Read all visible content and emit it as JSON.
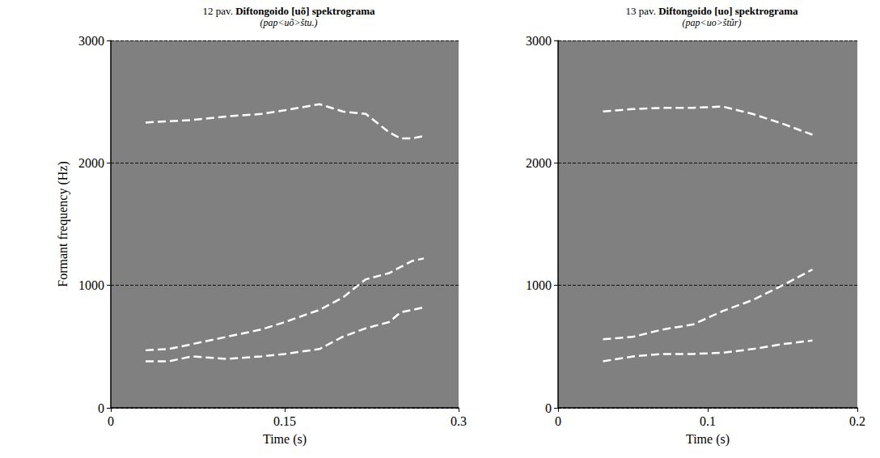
{
  "chart_data": [
    {
      "type": "line",
      "title": "12 pav. Diftongoido [uõ] spektrograma",
      "subtitle": "(pap<uõ>štu.)",
      "y_label": "Formant frequency (Hz)",
      "x_label": "Time (s)",
      "x": [
        0.03,
        0.05,
        0.07,
        0.1,
        0.13,
        0.15,
        0.18,
        0.2,
        0.22,
        0.24,
        0.25,
        0.26,
        0.27
      ],
      "series": [
        {
          "color": "#ffffff",
          "line_style": "dashed",
          "marker": "none",
          "values": [
            380,
            380,
            420,
            400,
            420,
            440,
            480,
            580,
            650,
            700,
            780,
            800,
            820
          ]
        },
        {
          "color": "#ffffff",
          "line_style": "dashed",
          "marker": "none",
          "values": [
            470,
            480,
            520,
            580,
            640,
            700,
            800,
            900,
            1050,
            1100,
            1150,
            1200,
            1220
          ]
        },
        {
          "color": "#ffffff",
          "line_style": "dashed",
          "marker": "none",
          "values": [
            2330,
            2340,
            2350,
            2380,
            2400,
            2430,
            2480,
            2420,
            2400,
            2250,
            2200,
            2200,
            2220
          ]
        }
      ],
      "xlim": [
        0,
        0.3
      ],
      "xticks": [
        0,
        0.15,
        0.3
      ],
      "ylim": [
        0,
        3000
      ],
      "yticks": [
        0,
        1000,
        2000,
        3000
      ],
      "grid": true
    },
    {
      "type": "line",
      "title": "13 pav. Diftongoido [uo] spektrograma",
      "subtitle": "(pap<uo>štũr)",
      "x_label": "Time (s)",
      "x": [
        0.03,
        0.05,
        0.07,
        0.09,
        0.11,
        0.13,
        0.15,
        0.17
      ],
      "series": [
        {
          "color": "#ffffff",
          "line_style": "dashed",
          "marker": "none",
          "values": [
            380,
            420,
            440,
            440,
            450,
            480,
            520,
            550
          ]
        },
        {
          "color": "#ffffff",
          "line_style": "dashed",
          "marker": "none",
          "values": [
            560,
            580,
            640,
            680,
            790,
            880,
            1000,
            1130
          ]
        },
        {
          "color": "#ffffff",
          "line_style": "dashed",
          "marker": "none",
          "values": [
            2420,
            2440,
            2450,
            2450,
            2460,
            2400,
            2320,
            2230
          ]
        }
      ],
      "xlim": [
        0,
        0.2
      ],
      "xticks": [
        0,
        0.1,
        0.2
      ],
      "ylim": [
        0,
        3000
      ],
      "yticks": [
        0,
        1000,
        2000,
        3000
      ],
      "grid": true
    }
  ]
}
